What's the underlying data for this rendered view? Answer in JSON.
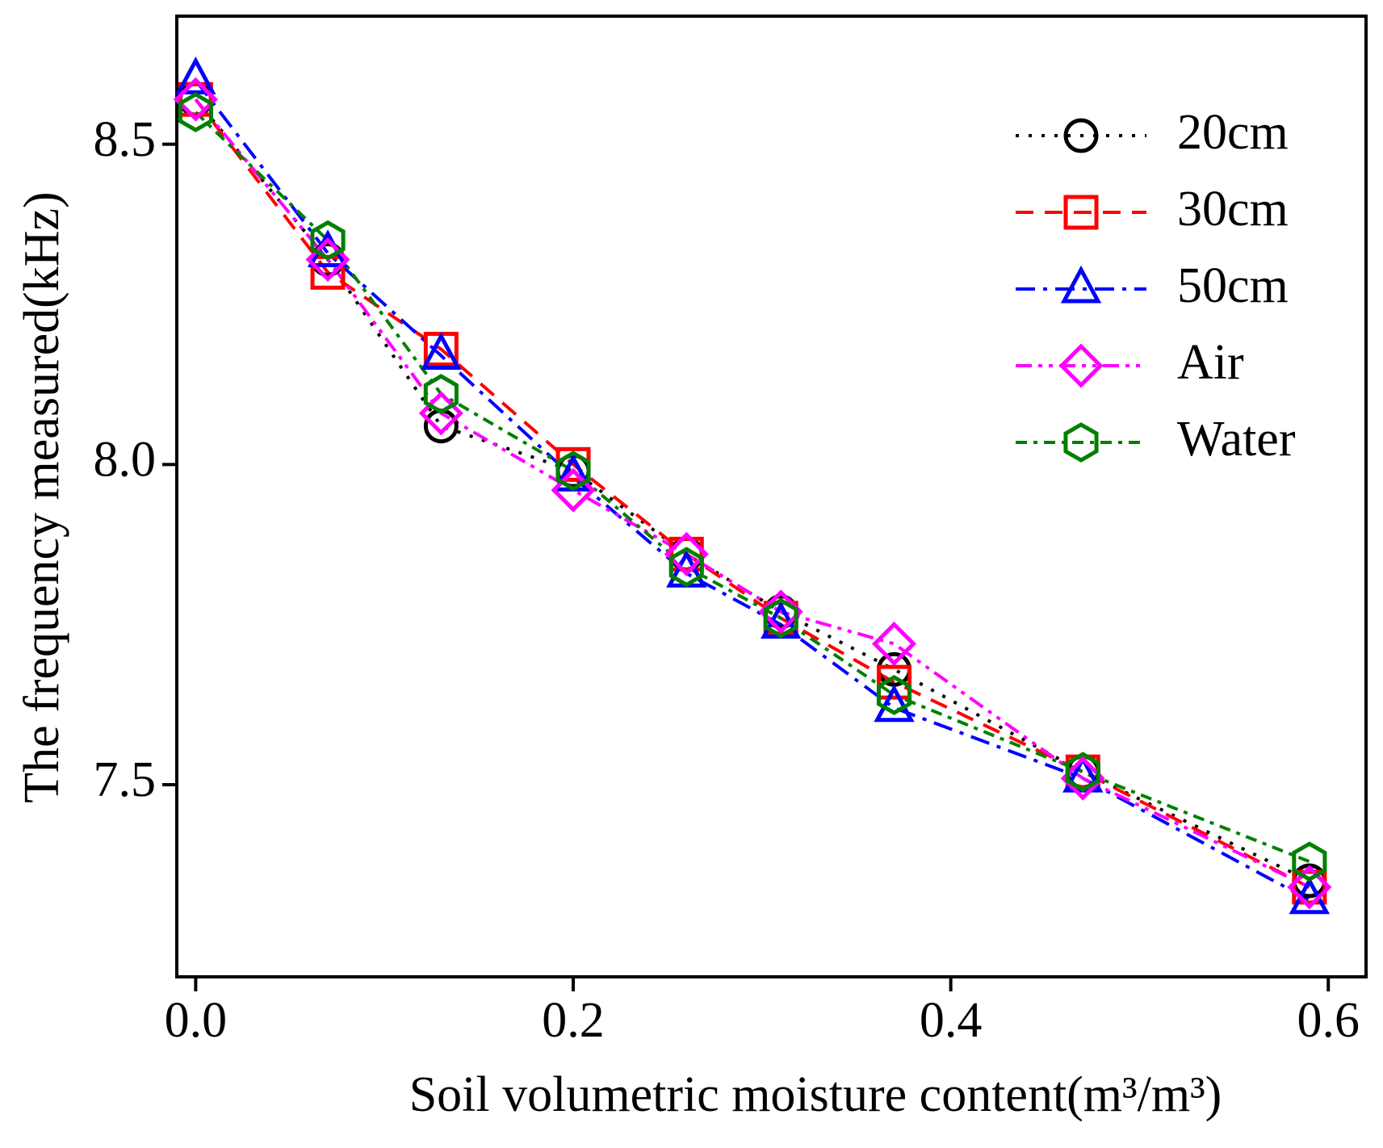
{
  "chart_data": {
    "type": "line",
    "x_label": "Soil volumetric moisture content(m³/m³)",
    "y_label": "The frequency measured(kHz)",
    "x": [
      0,
      0.07,
      0.13,
      0.2,
      0.26,
      0.31,
      0.37,
      0.47,
      0.59
    ],
    "series": [
      {
        "name": "20cm",
        "color": "#000000",
        "marker": "circle",
        "dash": "dotted",
        "values": [
          8.57,
          8.32,
          8.06,
          7.99,
          7.86,
          7.77,
          7.68,
          7.52,
          7.35
        ]
      },
      {
        "name": "30cm",
        "color": "#ff0000",
        "marker": "square",
        "dash": "dashed",
        "values": [
          8.57,
          8.3,
          8.18,
          8.0,
          7.86,
          7.76,
          7.66,
          7.52,
          7.34
        ]
      },
      {
        "name": "50cm",
        "color": "#0000ff",
        "marker": "triangle",
        "dash": "dashdot",
        "values": [
          8.6,
          8.33,
          8.17,
          7.98,
          7.83,
          7.75,
          7.62,
          7.51,
          7.32
        ]
      },
      {
        "name": "Air",
        "color": "#ff00ff",
        "marker": "diamond",
        "dash": "dashdotdot",
        "values": [
          8.57,
          8.32,
          8.08,
          7.96,
          7.86,
          7.77,
          7.72,
          7.51,
          7.34
        ]
      },
      {
        "name": "Water",
        "color": "#008000",
        "marker": "hexagon",
        "dash": "shortdashdot",
        "values": [
          8.55,
          8.35,
          8.11,
          7.99,
          7.84,
          7.76,
          7.64,
          7.52,
          7.38
        ]
      }
    ],
    "xlim": [
      -0.01,
      0.62
    ],
    "xticks": [
      {
        "value": 0,
        "label": "0.0"
      },
      0.2,
      0.4,
      0.6
    ],
    "ylim": [
      7.2,
      8.7
    ],
    "yticks": [
      7.5,
      {
        "value": 8,
        "label": "8.0"
      },
      8.5
    ],
    "legend": "upper right"
  }
}
